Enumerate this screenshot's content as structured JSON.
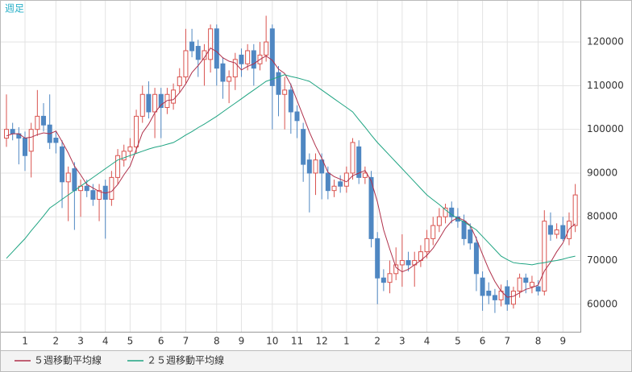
{
  "chart_data": {
    "type": "candlestick",
    "title": "週足",
    "categories": [
      null,
      null,
      null,
      "1",
      null,
      null,
      null,
      null,
      "2",
      null,
      null,
      null,
      "3",
      null,
      null,
      null,
      "4",
      null,
      null,
      null,
      "5",
      null,
      null,
      null,
      null,
      "6",
      null,
      null,
      null,
      "7",
      null,
      null,
      null,
      null,
      "8",
      null,
      null,
      null,
      "9",
      null,
      null,
      null,
      null,
      "10",
      null,
      null,
      null,
      "11",
      null,
      null,
      null,
      "12",
      null,
      null,
      null,
      "1",
      null,
      null,
      null,
      null,
      "2",
      null,
      null,
      null,
      "3",
      null,
      null,
      null,
      "4",
      null,
      null,
      null,
      null,
      "5",
      null,
      null,
      null,
      "6",
      null,
      null,
      null,
      "7",
      null,
      null,
      null,
      null,
      "8",
      null,
      null,
      null,
      "9",
      null,
      null
    ],
    "open": [
      98000,
      100000,
      99000,
      98000,
      95000,
      100000,
      103000,
      101000,
      98000,
      96000,
      88000,
      91000,
      86000,
      87000,
      86000,
      84000,
      87000,
      84000,
      89000,
      93000,
      95000,
      96000,
      103000,
      108000,
      104000,
      108000,
      105000,
      106000,
      110000,
      112000,
      120000,
      119000,
      116000,
      116000,
      123000,
      115000,
      111000,
      112000,
      117000,
      115000,
      118000,
      115000,
      117000,
      123000,
      113000,
      108000,
      109000,
      104000,
      100000,
      93000,
      90000,
      93000,
      90000,
      86000,
      88000,
      87000,
      90000,
      96000,
      89000,
      89000,
      75000,
      66000,
      65000,
      67000,
      69000,
      70000,
      69000,
      70000,
      72000,
      75000,
      78000,
      80000,
      82000,
      80000,
      79000,
      77000,
      74000,
      66000,
      63000,
      62000,
      61000,
      64000,
      60000,
      63000,
      66000,
      64000,
      64000,
      63000,
      78000,
      76000,
      78000,
      75000,
      78000
    ],
    "high": [
      108000,
      101500,
      100500,
      99500,
      101500,
      109000,
      106000,
      108000,
      99500,
      97500,
      91500,
      92500,
      88500,
      88500,
      87500,
      87500,
      88500,
      90500,
      95500,
      96500,
      98000,
      104500,
      110000,
      111000,
      109500,
      109500,
      109500,
      110500,
      114000,
      123000,
      123000,
      120500,
      119500,
      124000,
      124000,
      116500,
      113500,
      117500,
      118500,
      119500,
      119500,
      120000,
      126000,
      124000,
      114500,
      112000,
      110500,
      105500,
      101500,
      94500,
      94500,
      94500,
      91500,
      88500,
      89500,
      91500,
      98000,
      97500,
      91500,
      90500,
      76500,
      68000,
      70000,
      73000,
      76000,
      72000,
      72000,
      73500,
      77000,
      80000,
      82000,
      83000,
      83500,
      82000,
      80500,
      78500,
      75500,
      67500,
      65000,
      63500,
      64500,
      65500,
      64000,
      67000,
      67000,
      66500,
      65500,
      81500,
      81000,
      78500,
      80000,
      81000,
      87500
    ],
    "low": [
      96000,
      97500,
      92000,
      90500,
      89000,
      98500,
      99500,
      95500,
      94500,
      82000,
      79000,
      77000,
      80000,
      84500,
      82500,
      79000,
      75000,
      82500,
      87500,
      91500,
      93500,
      94500,
      101500,
      102500,
      98000,
      98000,
      103500,
      104500,
      108500,
      110500,
      116500,
      112000,
      110000,
      113000,
      110000,
      107000,
      106000,
      109000,
      112000,
      113500,
      110000,
      113500,
      115500,
      100000,
      103000,
      100000,
      99000,
      98000,
      88000,
      81000,
      85000,
      84000,
      84000,
      84500,
      85500,
      85500,
      88500,
      87500,
      87500,
      73000,
      60000,
      63000,
      62500,
      65500,
      64000,
      67500,
      64000,
      68500,
      70500,
      73500,
      76500,
      78500,
      78500,
      77500,
      73500,
      72500,
      63000,
      58500,
      60000,
      58000,
      59500,
      58500,
      59000,
      61500,
      62500,
      62500,
      62000,
      62000,
      74500,
      75000,
      74500,
      73500,
      76500
    ],
    "close": [
      100000,
      99000,
      98000,
      94000,
      100000,
      103000,
      101000,
      97000,
      97000,
      88000,
      90000,
      86000,
      87000,
      86000,
      84000,
      86000,
      84000,
      89000,
      94000,
      95000,
      96000,
      103000,
      108000,
      104000,
      108000,
      105000,
      108000,
      109000,
      112000,
      118000,
      118000,
      116000,
      118000,
      123000,
      114000,
      111000,
      112000,
      116000,
      115000,
      118000,
      114000,
      117000,
      120000,
      110000,
      108000,
      109000,
      104000,
      102000,
      92000,
      90000,
      93000,
      90000,
      86000,
      87000,
      87000,
      90000,
      97000,
      89000,
      90000,
      75000,
      66000,
      65000,
      67000,
      69000,
      70000,
      69000,
      70000,
      72000,
      75000,
      78000,
      80000,
      82000,
      80000,
      79000,
      75000,
      74000,
      67000,
      62000,
      62000,
      61000,
      63000,
      60000,
      63000,
      66000,
      65000,
      65000,
      63000,
      79000,
      76000,
      77000,
      75000,
      79000,
      85000
    ],
    "up_color": "#d9534f",
    "down_color": "#4f87c2",
    "series": [
      {
        "name": "５週移動平均線",
        "color": "#b0304a",
        "values": [
          98500,
          99000,
          99000,
          98000,
          98200,
          98800,
          99200,
          99000,
          99600,
          97200,
          94600,
          91600,
          89600,
          87400,
          86600,
          85800,
          85400,
          85800,
          87400,
          89600,
          91600,
          95400,
          99200,
          101200,
          103800,
          105600,
          106600,
          106800,
          108400,
          110400,
          113000,
          114600,
          116400,
          118600,
          117800,
          116400,
          115600,
          115200,
          113600,
          114400,
          115000,
          116000,
          116800,
          115800,
          113800,
          112800,
          110200,
          106600,
          103000,
          99400,
          96200,
          93400,
          90200,
          89200,
          88600,
          88000,
          89400,
          90000,
          90600,
          88200,
          83400,
          77000,
          72600,
          68400,
          67400,
          68000,
          69000,
          70000,
          71200,
          72800,
          75000,
          77400,
          79000,
          79800,
          79200,
          78000,
          75000,
          71400,
          68000,
          65200,
          63000,
          61600,
          61800,
          62600,
          63400,
          63800,
          64400,
          67600,
          69600,
          72000,
          74000,
          77200,
          78400
        ]
      },
      {
        "name": "２５週移動平均線",
        "color": "#1fa482",
        "values": [
          70500,
          72000,
          73500,
          75000,
          76800,
          78500,
          80200,
          82000,
          83000,
          84000,
          85000,
          86000,
          87000,
          88000,
          89000,
          90000,
          91000,
          92000,
          93000,
          93500,
          94000,
          94500,
          95000,
          95500,
          95900,
          96200,
          96600,
          97000,
          97800,
          98700,
          99500,
          100400,
          101200,
          102100,
          103000,
          104000,
          105000,
          106000,
          107000,
          108000,
          109000,
          110000,
          111000,
          111500,
          112000,
          112500,
          112100,
          111800,
          111400,
          111000,
          110000,
          109000,
          108000,
          107000,
          106000,
          105000,
          104000,
          102200,
          100500,
          98700,
          97000,
          95500,
          94000,
          92500,
          91000,
          89500,
          88000,
          86500,
          85000,
          83900,
          82800,
          81600,
          80500,
          79600,
          78800,
          77900,
          77000,
          75500,
          74000,
          72500,
          71000,
          70200,
          69500,
          69300,
          69200,
          69000,
          69300,
          69500,
          69800,
          70000,
          70300,
          70700,
          71000
        ]
      }
    ],
    "ylim": [
      53700,
      129600
    ],
    "yticks": [
      60000,
      70000,
      80000,
      90000,
      100000,
      110000,
      120000
    ],
    "grid": true
  }
}
